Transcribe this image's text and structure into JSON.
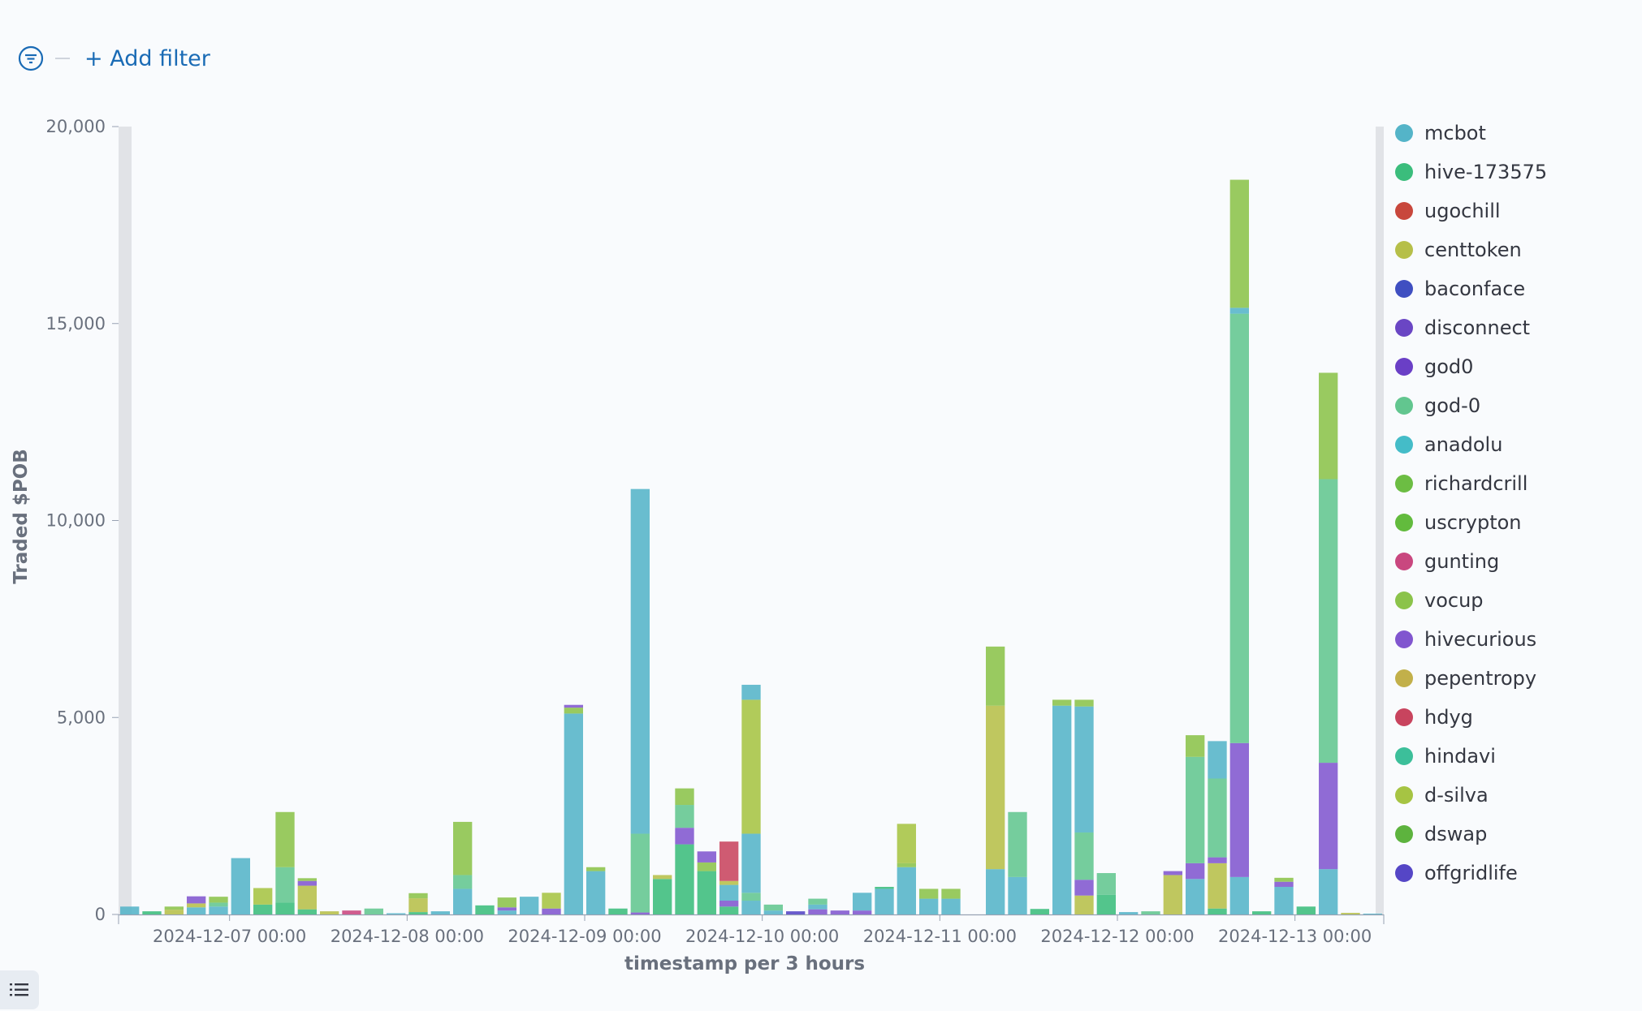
{
  "filter": {
    "add_label": "+ Add filter",
    "icon": "filter-icon"
  },
  "legend_toggle_icon": "list-icon",
  "chart_data": {
    "type": "bar",
    "stacked": true,
    "title": "",
    "xlabel": "timestamp per 3 hours",
    "ylabel": "Traded $POB",
    "ylim": [
      0,
      20000
    ],
    "y_ticks": [
      "0",
      "5,000",
      "10,000",
      "15,000",
      "20,000"
    ],
    "x_ticks": [
      "2024-12-07 00:00",
      "2024-12-08 00:00",
      "2024-12-09 00:00",
      "2024-12-10 00:00",
      "2024-12-11 00:00",
      "2024-12-12 00:00",
      "2024-12-13 00:00"
    ],
    "x_tick_bins": [
      5,
      13,
      21,
      29,
      37,
      45,
      53
    ],
    "legend_position": "right",
    "series": [
      {
        "name": "mcbot",
        "color": "#54b4c8"
      },
      {
        "name": "hive-173575",
        "color": "#3bbd7c"
      },
      {
        "name": "ugochill",
        "color": "#c8473c"
      },
      {
        "name": "centtoken",
        "color": "#b6bf49"
      },
      {
        "name": "baconface",
        "color": "#3f4fc1"
      },
      {
        "name": "disconnect",
        "color": "#6a46c4"
      },
      {
        "name": "god0",
        "color": "#6a3fc6"
      },
      {
        "name": "god-0",
        "color": "#62c68f"
      },
      {
        "name": "anadolu",
        "color": "#44bcc8"
      },
      {
        "name": "richardcrill",
        "color": "#6cbd43"
      },
      {
        "name": "uscrypton",
        "color": "#62bb3d"
      },
      {
        "name": "gunting",
        "color": "#c9477f"
      },
      {
        "name": "vocup",
        "color": "#8bc34a"
      },
      {
        "name": "hivecurious",
        "color": "#8156cf"
      },
      {
        "name": "pepentropy",
        "color": "#c2b04a"
      },
      {
        "name": "hdyg",
        "color": "#c8445e"
      },
      {
        "name": "hindavi",
        "color": "#3cbf9a"
      },
      {
        "name": "d-silva",
        "color": "#a6c443"
      },
      {
        "name": "dswap",
        "color": "#5db33e"
      },
      {
        "name": "offgridlife",
        "color": "#5546c6"
      }
    ],
    "bins": [
      [
        {
          "s": "mcbot",
          "v": 200
        }
      ],
      [
        {
          "s": "hive-173575",
          "v": 80
        }
      ],
      [
        {
          "s": "centtoken",
          "v": 120
        },
        {
          "s": "vocup",
          "v": 80
        }
      ],
      [
        {
          "s": "mcbot",
          "v": 180
        },
        {
          "s": "centtoken",
          "v": 100
        },
        {
          "s": "hivecurious",
          "v": 180
        }
      ],
      [
        {
          "s": "mcbot",
          "v": 200
        },
        {
          "s": "god-0",
          "v": 100
        },
        {
          "s": "vocup",
          "v": 150
        }
      ],
      [
        {
          "s": "mcbot",
          "v": 1430
        }
      ],
      [
        {
          "s": "hive-173575",
          "v": 250
        },
        {
          "s": "d-silva",
          "v": 420
        }
      ],
      [
        {
          "s": "hive-173575",
          "v": 300
        },
        {
          "s": "god-0",
          "v": 900
        },
        {
          "s": "vocup",
          "v": 1400
        }
      ],
      [
        {
          "s": "hive-173575",
          "v": 130
        },
        {
          "s": "centtoken",
          "v": 600
        },
        {
          "s": "hivecurious",
          "v": 120
        },
        {
          "s": "vocup",
          "v": 70
        }
      ],
      [
        {
          "s": "centtoken",
          "v": 80
        }
      ],
      [
        {
          "s": "gunting",
          "v": 100
        }
      ],
      [
        {
          "s": "god-0",
          "v": 150
        }
      ],
      [
        {
          "s": "mcbot",
          "v": 30
        }
      ],
      [
        {
          "s": "hive-173575",
          "v": 60
        },
        {
          "s": "centtoken",
          "v": 350
        },
        {
          "s": "vocup",
          "v": 130
        }
      ],
      [
        {
          "s": "mcbot",
          "v": 80
        }
      ],
      [
        {
          "s": "mcbot",
          "v": 650
        },
        {
          "s": "god-0",
          "v": 350
        },
        {
          "s": "vocup",
          "v": 1350
        }
      ],
      [
        {
          "s": "hive-173575",
          "v": 230
        }
      ],
      [
        {
          "s": "mcbot",
          "v": 100
        },
        {
          "s": "hivecurious",
          "v": 80
        },
        {
          "s": "vocup",
          "v": 250
        }
      ],
      [
        {
          "s": "mcbot",
          "v": 450
        }
      ],
      [
        {
          "s": "hivecurious",
          "v": 150
        },
        {
          "s": "d-silva",
          "v": 400
        }
      ],
      [
        {
          "s": "mcbot",
          "v": 5100
        },
        {
          "s": "vocup",
          "v": 150
        },
        {
          "s": "hivecurious",
          "v": 70
        }
      ],
      [
        {
          "s": "mcbot",
          "v": 1100
        },
        {
          "s": "vocup",
          "v": 100
        }
      ],
      [
        {
          "s": "hive-173575",
          "v": 150
        }
      ],
      [
        {
          "s": "hivecurious",
          "v": 50
        },
        {
          "s": "god-0",
          "v": 2000
        },
        {
          "s": "mcbot",
          "v": 8750
        }
      ],
      [
        {
          "s": "hive-173575",
          "v": 900
        },
        {
          "s": "centtoken",
          "v": 100
        }
      ],
      [
        {
          "s": "hive-173575",
          "v": 1780
        },
        {
          "s": "hivecurious",
          "v": 420
        },
        {
          "s": "god-0",
          "v": 580
        },
        {
          "s": "vocup",
          "v": 420
        }
      ],
      [
        {
          "s": "hive-173575",
          "v": 1100
        },
        {
          "s": "vocup",
          "v": 220
        },
        {
          "s": "hivecurious",
          "v": 280
        }
      ],
      [
        {
          "s": "hive-173575",
          "v": 200
        },
        {
          "s": "hivecurious",
          "v": 150
        },
        {
          "s": "mcbot",
          "v": 400
        },
        {
          "s": "centtoken",
          "v": 100
        },
        {
          "s": "hdyg",
          "v": 1000
        }
      ],
      [
        {
          "s": "mcbot",
          "v": 350
        },
        {
          "s": "god-0",
          "v": 200
        },
        {
          "s": "mcbot",
          "v": 1500
        },
        {
          "s": "d-silva",
          "v": 3400
        },
        {
          "s": "mcbot",
          "v": 380
        }
      ],
      [
        {
          "s": "mcbot",
          "v": 100
        },
        {
          "s": "god-0",
          "v": 150
        }
      ],
      [
        {
          "s": "offgridlife",
          "v": 80
        }
      ],
      [
        {
          "s": "hivecurious",
          "v": 130
        },
        {
          "s": "mcbot",
          "v": 120
        },
        {
          "s": "god-0",
          "v": 150
        }
      ],
      [
        {
          "s": "hivecurious",
          "v": 100
        }
      ],
      [
        {
          "s": "hivecurious",
          "v": 100
        },
        {
          "s": "mcbot",
          "v": 450
        }
      ],
      [
        {
          "s": "mcbot",
          "v": 650
        },
        {
          "s": "hive-173575",
          "v": 50
        }
      ],
      [
        {
          "s": "mcbot",
          "v": 1200
        },
        {
          "s": "vocup",
          "v": 100
        },
        {
          "s": "d-silva",
          "v": 1000
        }
      ],
      [
        {
          "s": "mcbot",
          "v": 400
        },
        {
          "s": "vocup",
          "v": 250
        }
      ],
      [
        {
          "s": "mcbot",
          "v": 400
        },
        {
          "s": "vocup",
          "v": 250
        }
      ],
      [],
      [
        {
          "s": "mcbot",
          "v": 1150
        },
        {
          "s": "centtoken",
          "v": 4150
        },
        {
          "s": "vocup",
          "v": 1500
        }
      ],
      [
        {
          "s": "mcbot",
          "v": 950
        },
        {
          "s": "god-0",
          "v": 1650
        }
      ],
      [
        {
          "s": "hive-173575",
          "v": 140
        }
      ],
      [
        {
          "s": "mcbot",
          "v": 5300
        },
        {
          "s": "vocup",
          "v": 150
        }
      ],
      [
        {
          "s": "centtoken",
          "v": 480
        },
        {
          "s": "hivecurious",
          "v": 400
        },
        {
          "s": "god-0",
          "v": 1200
        },
        {
          "s": "mcbot",
          "v": 3200
        },
        {
          "s": "vocup",
          "v": 170
        }
      ],
      [
        {
          "s": "hive-173575",
          "v": 500
        },
        {
          "s": "god-0",
          "v": 550
        }
      ],
      [
        {
          "s": "mcbot",
          "v": 60
        }
      ],
      [
        {
          "s": "god-0",
          "v": 80
        }
      ],
      [
        {
          "s": "centtoken",
          "v": 1000
        },
        {
          "s": "hivecurious",
          "v": 100
        }
      ],
      [
        {
          "s": "mcbot",
          "v": 900
        },
        {
          "s": "hivecurious",
          "v": 400
        },
        {
          "s": "god-0",
          "v": 2700
        },
        {
          "s": "vocup",
          "v": 550
        }
      ],
      [
        {
          "s": "hive-173575",
          "v": 150
        },
        {
          "s": "centtoken",
          "v": 1150
        },
        {
          "s": "hivecurious",
          "v": 150
        },
        {
          "s": "god-0",
          "v": 2000
        },
        {
          "s": "mcbot",
          "v": 950
        }
      ],
      [
        {
          "s": "mcbot",
          "v": 950
        },
        {
          "s": "hivecurious",
          "v": 3400
        },
        {
          "s": "god-0",
          "v": 10900
        },
        {
          "s": "mcbot",
          "v": 150
        },
        {
          "s": "vocup",
          "v": 3250
        }
      ],
      [
        {
          "s": "hive-173575",
          "v": 80
        }
      ],
      [
        {
          "s": "mcbot",
          "v": 700
        },
        {
          "s": "hivecurious",
          "v": 130
        },
        {
          "s": "vocup",
          "v": 100
        }
      ],
      [
        {
          "s": "hive-173575",
          "v": 200
        }
      ],
      [
        {
          "s": "mcbot",
          "v": 1150
        },
        {
          "s": "hivecurious",
          "v": 2700
        },
        {
          "s": "god-0",
          "v": 7200
        },
        {
          "s": "vocup",
          "v": 2700
        }
      ],
      [
        {
          "s": "centtoken",
          "v": 40
        }
      ],
      [
        {
          "s": "mcbot",
          "v": 20
        }
      ]
    ]
  }
}
